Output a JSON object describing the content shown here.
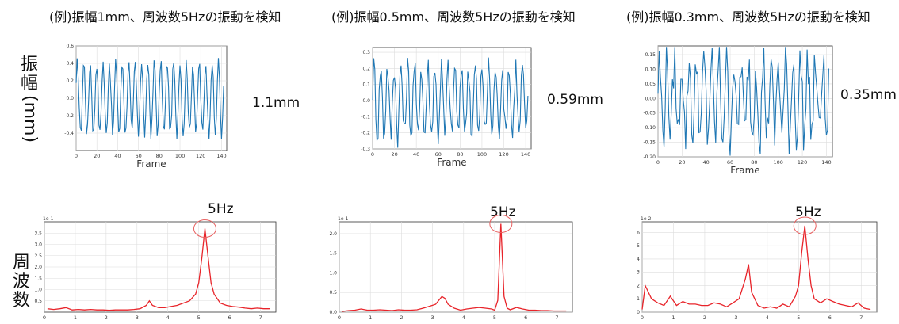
{
  "row_labels": {
    "amplitude": [
      "振",
      "幅",
      "(mm)"
    ],
    "frequency": [
      "周",
      "波",
      "数"
    ]
  },
  "panels": [
    {
      "title": "(例)振幅1mm、周波数5Hzの振動を検知",
      "amplitude_label": "1.1mm",
      "peak_label": "5Hz"
    },
    {
      "title": "(例)振幅0.5mm、周波数5Hzの振動を検知",
      "amplitude_label": "0.59mm",
      "peak_label": "5Hz"
    },
    {
      "title": "(例)振幅0.3mm、周波数5Hzの振動を検知",
      "amplitude_label": "0.35mm",
      "peak_label": "5Hz"
    }
  ],
  "colors": {
    "time_series": "#1f77b4",
    "spectrum": "#e8242a",
    "peak_circle": "#e86060",
    "grid": "#dddddd",
    "axis": "#333333"
  },
  "chart_data": [
    {
      "type": "line",
      "xlabel": "Frame",
      "xlim": [
        0,
        145
      ],
      "ylim": [
        -0.6,
        0.6
      ],
      "xticks": [
        0,
        20,
        40,
        60,
        80,
        100,
        120,
        140
      ],
      "yticks": [
        -0.4,
        -0.2,
        0.0,
        0.2,
        0.4,
        0.6
      ],
      "ytick_labels": [
        "-0.4",
        "-0.2",
        "0.0",
        "0.2",
        "0.4",
        "0.6"
      ],
      "grid": true,
      "n_points": 143,
      "amplitude": 0.55,
      "frequency_per_frame": 0.167
    },
    {
      "type": "line",
      "xlabel": "Frame",
      "xlim": [
        0,
        145
      ],
      "ylim": [
        -0.3,
        0.33
      ],
      "xticks": [
        0,
        20,
        40,
        60,
        80,
        100,
        120,
        140
      ],
      "yticks": [
        -0.3,
        -0.2,
        -0.1,
        0.0,
        0.1,
        0.2,
        0.3
      ],
      "ytick_labels": [
        "-0.3",
        "-0.2",
        "-0.1",
        "0.0",
        "0.1",
        "0.2",
        "0.3"
      ],
      "grid": true,
      "n_points": 143,
      "amplitude": 0.29,
      "frequency_per_frame": 0.167
    },
    {
      "type": "line",
      "xlabel": "Frame",
      "xlim": [
        0,
        145
      ],
      "ylim": [
        -0.2,
        0.18
      ],
      "xticks": [
        0,
        20,
        40,
        60,
        80,
        100,
        120,
        140
      ],
      "yticks": [
        -0.2,
        -0.15,
        -0.1,
        -0.05,
        0.0,
        0.05,
        0.1,
        0.15
      ],
      "ytick_labels": [
        "-0.20",
        "-0.15",
        "-0.10",
        "-0.05",
        "0.00",
        "0.05",
        "0.10",
        "0.15"
      ],
      "grid": true,
      "n_points": 143,
      "amplitude": 0.17,
      "frequency_per_frame": 0.167
    },
    {
      "type": "line",
      "xlim": [
        0,
        7.5
      ],
      "ylim": [
        0,
        4.0
      ],
      "scale_label": "1e-1",
      "xticks": [
        0,
        1,
        2,
        3,
        4,
        5,
        6,
        7
      ],
      "yticks": [
        0.5,
        1.0,
        1.5,
        2.0,
        2.5,
        3.0,
        3.5
      ],
      "ytick_labels": [
        "0.5",
        "1.0",
        "1.5",
        "2.0",
        "2.5",
        "3.0",
        "3.5"
      ],
      "grid": true,
      "x": [
        0.1,
        0.3,
        0.5,
        0.7,
        0.9,
        1.1,
        1.3,
        1.5,
        1.7,
        1.9,
        2.1,
        2.3,
        2.5,
        2.7,
        2.9,
        3.1,
        3.3,
        3.4,
        3.5,
        3.7,
        3.9,
        4.1,
        4.3,
        4.5,
        4.7,
        4.9,
        5.0,
        5.1,
        5.2,
        5.3,
        5.4,
        5.5,
        5.7,
        5.9,
        6.1,
        6.3,
        6.5,
        6.7,
        6.9,
        7.1,
        7.3
      ],
      "y": [
        0.15,
        0.12,
        0.15,
        0.2,
        0.1,
        0.12,
        0.1,
        0.12,
        0.1,
        0.1,
        0.08,
        0.1,
        0.1,
        0.1,
        0.12,
        0.15,
        0.3,
        0.5,
        0.3,
        0.2,
        0.2,
        0.25,
        0.3,
        0.4,
        0.5,
        0.8,
        1.3,
        2.4,
        3.7,
        2.5,
        1.3,
        0.8,
        0.4,
        0.3,
        0.25,
        0.22,
        0.18,
        0.15,
        0.18,
        0.15,
        0.15
      ]
    },
    {
      "type": "line",
      "xlim": [
        0,
        7.5
      ],
      "ylim": [
        0,
        2.3
      ],
      "scale_label": "1e-1",
      "xticks": [
        0,
        1,
        2,
        3,
        4,
        5,
        6,
        7
      ],
      "yticks": [
        0.0,
        0.5,
        1.0,
        1.5,
        2.0
      ],
      "ytick_labels": [
        "0.0",
        "0.5",
        "1.0",
        "1.5",
        "2.0"
      ],
      "grid": true,
      "x": [
        0.1,
        0.3,
        0.5,
        0.7,
        0.9,
        1.1,
        1.3,
        1.5,
        1.7,
        1.9,
        2.1,
        2.3,
        2.5,
        2.7,
        2.9,
        3.1,
        3.3,
        3.4,
        3.5,
        3.7,
        3.9,
        4.1,
        4.3,
        4.5,
        4.7,
        4.9,
        5.0,
        5.1,
        5.2,
        5.3,
        5.4,
        5.5,
        5.7,
        5.9,
        6.1,
        6.3,
        6.5,
        6.7,
        6.9,
        7.1,
        7.3
      ],
      "y": [
        0.02,
        0.04,
        0.05,
        0.08,
        0.05,
        0.05,
        0.06,
        0.05,
        0.04,
        0.06,
        0.05,
        0.05,
        0.06,
        0.1,
        0.15,
        0.2,
        0.4,
        0.35,
        0.2,
        0.1,
        0.05,
        0.08,
        0.1,
        0.12,
        0.1,
        0.08,
        0.05,
        0.3,
        2.25,
        0.4,
        0.1,
        0.06,
        0.12,
        0.08,
        0.05,
        0.05,
        0.04,
        0.04,
        0.03,
        0.03,
        0.03
      ]
    },
    {
      "type": "line",
      "xlim": [
        0,
        7.5
      ],
      "ylim": [
        0,
        6.8
      ],
      "scale_label": "1e-2",
      "xticks": [
        0,
        1,
        2,
        3,
        4,
        5,
        6,
        7
      ],
      "yticks": [
        0,
        1,
        2,
        3,
        4,
        5,
        6
      ],
      "ytick_labels": [
        "0",
        "1",
        "2",
        "3",
        "4",
        "5",
        "6"
      ],
      "grid": true,
      "x": [
        0.0,
        0.1,
        0.3,
        0.5,
        0.7,
        0.9,
        1.1,
        1.3,
        1.5,
        1.7,
        1.9,
        2.1,
        2.3,
        2.5,
        2.7,
        2.9,
        3.1,
        3.3,
        3.4,
        3.5,
        3.7,
        3.9,
        4.1,
        4.3,
        4.5,
        4.7,
        4.9,
        5.0,
        5.1,
        5.2,
        5.3,
        5.4,
        5.5,
        5.7,
        5.9,
        6.1,
        6.3,
        6.5,
        6.7,
        6.9,
        7.1,
        7.3
      ],
      "y": [
        0.2,
        2.0,
        1.0,
        0.7,
        0.5,
        1.2,
        0.5,
        0.8,
        0.6,
        0.6,
        0.5,
        0.5,
        0.7,
        0.6,
        0.4,
        0.7,
        1.0,
        2.5,
        3.6,
        1.5,
        0.5,
        0.3,
        0.4,
        0.3,
        0.6,
        0.4,
        1.2,
        2.0,
        4.5,
        6.5,
        4.0,
        2.0,
        1.0,
        0.7,
        1.0,
        0.8,
        0.6,
        0.5,
        0.4,
        0.7,
        0.3,
        0.2
      ]
    }
  ]
}
